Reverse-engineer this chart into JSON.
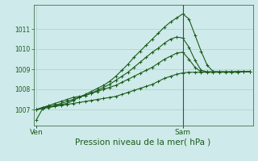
{
  "background_color": "#ceeaea",
  "grid_color": "#aacfcf",
  "line_color": "#1a5c1a",
  "marker_color": "#1a5c1a",
  "title": "Pression niveau de la mer( hPa )",
  "xlabel_ven": "Ven",
  "xlabel_sam": "Sam",
  "ylim": [
    1006.2,
    1012.2
  ],
  "yticks": [
    1007,
    1008,
    1009,
    1010,
    1011
  ],
  "n_points": 36,
  "ven_x": 0,
  "sam_x": 24,
  "xlim": [
    -0.5,
    35.5
  ],
  "series": {
    "s1": [
      1006.5,
      1007.05,
      1007.15,
      1007.2,
      1007.25,
      1007.3,
      1007.45,
      1007.6,
      1007.75,
      1007.9,
      1008.05,
      1008.2,
      1008.4,
      1008.65,
      1008.95,
      1009.25,
      1009.6,
      1009.9,
      1010.2,
      1010.5,
      1010.8,
      1011.1,
      1011.35,
      1011.55,
      1011.75,
      1011.5,
      1010.7,
      1009.9,
      1009.2,
      1008.88,
      1008.87,
      1008.87,
      1008.87,
      1008.88,
      1008.88,
      1008.88
    ],
    "s2": [
      1007.0,
      1007.1,
      1007.15,
      1007.2,
      1007.3,
      1007.4,
      1007.5,
      1007.6,
      1007.7,
      1007.82,
      1007.95,
      1008.1,
      1008.25,
      1008.45,
      1008.65,
      1008.85,
      1009.1,
      1009.35,
      1009.6,
      1009.85,
      1010.05,
      1010.3,
      1010.5,
      1010.6,
      1010.55,
      1010.1,
      1009.45,
      1008.95,
      1008.87,
      1008.87,
      1008.87,
      1008.87,
      1008.87,
      1008.88,
      1008.88,
      1008.88
    ],
    "s3": [
      1007.0,
      1007.1,
      1007.2,
      1007.3,
      1007.4,
      1007.5,
      1007.6,
      1007.65,
      1007.7,
      1007.8,
      1007.9,
      1008.0,
      1008.1,
      1008.2,
      1008.35,
      1008.5,
      1008.65,
      1008.8,
      1008.95,
      1009.1,
      1009.3,
      1009.5,
      1009.65,
      1009.8,
      1009.85,
      1009.5,
      1009.1,
      1008.87,
      1008.87,
      1008.87,
      1008.87,
      1008.87,
      1008.87,
      1008.87,
      1008.87,
      1008.87
    ],
    "s4": [
      1007.0,
      1007.05,
      1007.1,
      1007.15,
      1007.2,
      1007.25,
      1007.3,
      1007.35,
      1007.4,
      1007.45,
      1007.5,
      1007.55,
      1007.6,
      1007.65,
      1007.75,
      1007.85,
      1007.95,
      1008.05,
      1008.15,
      1008.25,
      1008.4,
      1008.55,
      1008.65,
      1008.75,
      1008.82,
      1008.85,
      1008.85,
      1008.85,
      1008.85,
      1008.85,
      1008.85,
      1008.85,
      1008.85,
      1008.85,
      1008.87,
      1008.88
    ]
  }
}
